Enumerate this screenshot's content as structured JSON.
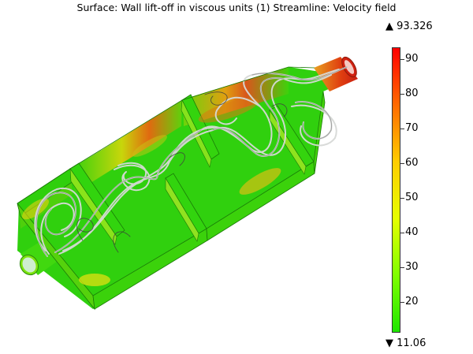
{
  "title": "Surface: Wall lift-off in viscous units (1)  Streamline: Velocity field",
  "colorbar": {
    "max_label": "▲ 93.326",
    "min_label": "▼ 11.06",
    "max": 93.326,
    "min": 11.06,
    "ticks": [
      "90",
      "80",
      "70",
      "60",
      "50",
      "40",
      "30",
      "20"
    ],
    "colors": [
      "#ff0000",
      "#ff6a00",
      "#ffcc00",
      "#e6ff00",
      "#80ff00",
      "#1ee600"
    ]
  }
}
